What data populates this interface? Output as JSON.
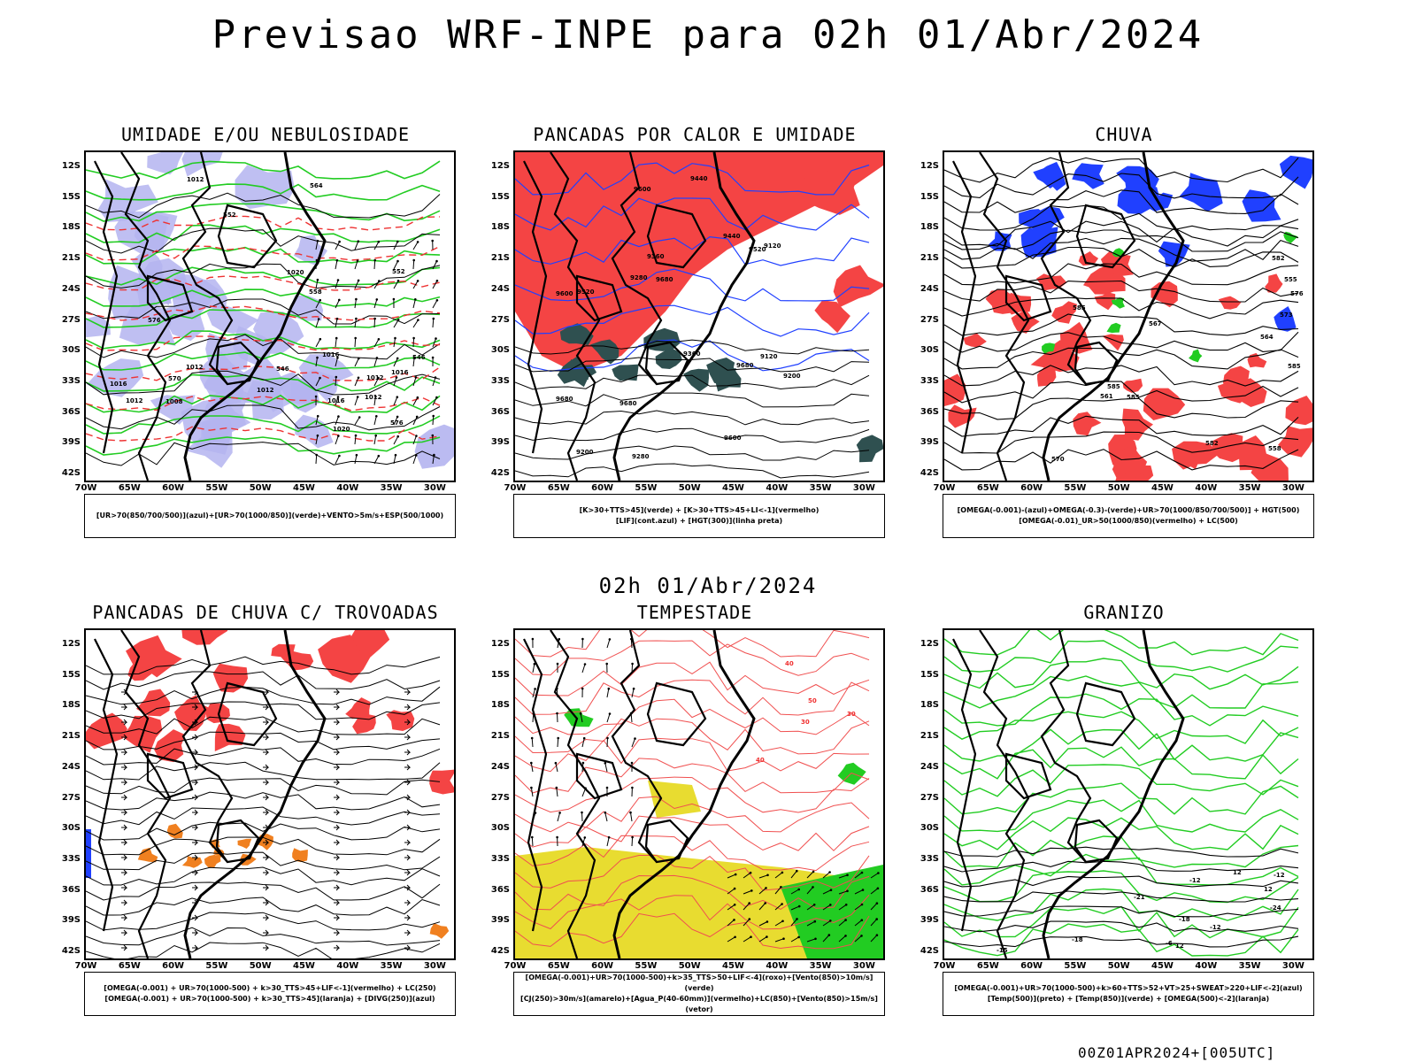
{
  "title": "Previsao WRF-INPE  para 02h 01/Abr/2024",
  "mid_date": "02h 01/Abr/2024",
  "footer": "00Z01APR2024+[005UTC]",
  "lat_labels": [
    "12S",
    "15S",
    "18S",
    "21S",
    "24S",
    "27S",
    "30S",
    "33S",
    "36S",
    "39S",
    "42S"
  ],
  "lon_labels": [
    "70W",
    "65W",
    "60W",
    "55W",
    "50W",
    "45W",
    "40W",
    "35W",
    "30W"
  ],
  "colors": {
    "red": "#f44444",
    "light_blue": "#b4b4f0",
    "blue": "#2040ff",
    "green": "#22cc22",
    "dark_teal": "#2f5050",
    "yellow": "#e8dc30",
    "orange": "#f08020"
  },
  "panels": [
    {
      "title": "UMIDADE E/OU NEBULOSIDADE",
      "legend": [
        "[UR>70(850/700/500)](azul)+[UR>70(1000/850)](verde)+VENTO>5m/s+ESP(500/1000)"
      ],
      "contour_labels": [
        "1012",
        "1012",
        "1012",
        "1020",
        "1016",
        "1008",
        "1016",
        "1012",
        "1016",
        "1012",
        "1016",
        "1020",
        "576",
        "576",
        "570",
        "564",
        "558",
        "552",
        "546",
        "552",
        "546",
        "1012"
      ]
    },
    {
      "title": "PANCADAS POR CALOR E UMIDADE",
      "legend": [
        "[K>30+TTS>45](verde) + [K>30+TTS>45+LI<-1](vermelho)",
        "[LIF](cont.azul) + [HGT(300)](linha preta)"
      ],
      "contour_labels": [
        "9680",
        "9680",
        "9680",
        "9600",
        "9680",
        "9600",
        "9600",
        "9520",
        "9520",
        "9440",
        "9440",
        "9360",
        "9360",
        "9280",
        "9280",
        "9200",
        "9200",
        "9120",
        "9120"
      ]
    },
    {
      "title": "CHUVA",
      "legend": [
        "[OMEGA(-0.001)-(azul)+OMEGA(-0.3)-(verde)+UR>70(1000/850/700/500)] + HGT(500)",
        "[OMEGA(-0.01)_UR>50(1000/850)(vermelho) + LC(500)"
      ],
      "contour_labels": [
        "585",
        "585",
        "585",
        "585",
        "582",
        "576",
        "573",
        "570",
        "567",
        "564",
        "561",
        "558",
        "555",
        "582"
      ]
    },
    {
      "title": "PANCADAS DE CHUVA C/ TROVOADAS",
      "legend": [
        "[OMEGA(-0.001) + UR>70(1000-500) + k>30_TTS>45+LIF<-1](vermelho) + LC(250)",
        "[OMEGA(-0.001) + UR>70(1000-500) + k>30_TTS>45](laranja) + [DIVG(250)](azul)"
      ],
      "contour_labels": []
    },
    {
      "title": "TEMPESTADE",
      "legend": [
        "[OMEGA(-0.001)+UR>70(1000-500)+k>35_TTS>50+LIF<-4](roxo)+[Vento(850)>10m/s](verde)",
        "[CJ(250)>30m/s](amarelo)+[Agua_P(40-60mm)](vermelho)+LC(850)+[Vento(850)>15m/s](vetor)"
      ],
      "contour_labels": [
        "50",
        "40",
        "30",
        "40",
        "30"
      ]
    },
    {
      "title": "GRANIZO",
      "legend": [
        "[OMEGA(-0.001)+UR>70(1000-500)+k>60+TTS>52+VT>25+SWEAT>220+LIF<-2](azul)",
        "[Temp(500)](preto) + [Temp(850)](verde) + [OMEGA(500)<-2](laranja)"
      ],
      "contour_labels": [
        "-12",
        "-12",
        "-15",
        "-18",
        "-18",
        "-21",
        "-24",
        "-12",
        "12",
        "-6",
        "12",
        "12"
      ]
    }
  ]
}
